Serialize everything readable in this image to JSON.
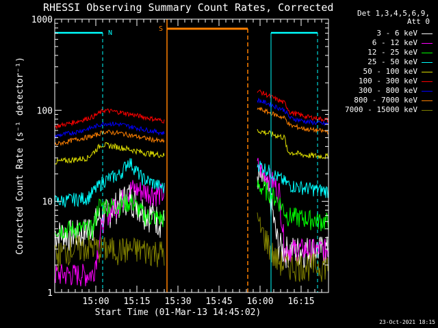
{
  "chart_data": {
    "type": "line",
    "title": "RHESSI Observing Summary Count Rates, Corrected",
    "xlabel": "Start Time (01-Mar-13 14:45:02)",
    "ylabel": "Corrected Count Rate (s⁻¹ detector⁻¹)",
    "ylog": true,
    "ylim": [
      1,
      1000
    ],
    "yticks": [
      {
        "v": 1,
        "label": "1"
      },
      {
        "v": 10,
        "label": "10"
      },
      {
        "v": 100,
        "label": "100"
      },
      {
        "v": 1000,
        "label": "1000"
      }
    ],
    "xlim_minutes": [
      0,
      100
    ],
    "xticks": [
      {
        "t": 15,
        "label": "15:00"
      },
      {
        "t": 30,
        "label": "15:15"
      },
      {
        "t": 45,
        "label": "15:30"
      },
      {
        "t": 60,
        "label": "15:45"
      },
      {
        "t": 75,
        "label": "16:00"
      },
      {
        "t": 90,
        "label": "16:15"
      }
    ],
    "detectors": "Det 1,3,4,5,6,9,",
    "attenuator": "Att 0",
    "annotations": [
      {
        "label": "N",
        "color": "#00ffff"
      },
      {
        "label": "S",
        "color": "#ff8000"
      }
    ],
    "series": [
      {
        "name": "3 - 6 keV",
        "color": "#ffffff",
        "seg1": [
          {
            "t": 0,
            "v": 4.5
          },
          {
            "t": 10,
            "v": 4.5
          },
          {
            "t": 17,
            "v": 7
          },
          {
            "t": 22,
            "v": 9
          },
          {
            "t": 27,
            "v": 12
          },
          {
            "t": 33,
            "v": 8
          },
          {
            "t": 40,
            "v": 6
          }
        ],
        "seg2": [
          {
            "t": 74,
            "v": 20
          },
          {
            "t": 77,
            "v": 15
          },
          {
            "t": 79,
            "v": 10
          },
          {
            "t": 81,
            "v": 4
          },
          {
            "t": 83,
            "v": 3
          },
          {
            "t": 88,
            "v": 3
          },
          {
            "t": 100,
            "v": 3
          }
        ]
      },
      {
        "name": "6 - 12 keV",
        "color": "#ff00ff",
        "seg1": [
          {
            "t": 0,
            "v": 1.6
          },
          {
            "t": 14,
            "v": 1.6
          },
          {
            "t": 18,
            "v": 7
          },
          {
            "t": 24,
            "v": 10
          },
          {
            "t": 28,
            "v": 14
          },
          {
            "t": 33,
            "v": 13
          },
          {
            "t": 40,
            "v": 12
          }
        ],
        "seg2": [
          {
            "t": 74,
            "v": 25
          },
          {
            "t": 77,
            "v": 20
          },
          {
            "t": 80,
            "v": 16
          },
          {
            "t": 82,
            "v": 13
          },
          {
            "t": 84,
            "v": 3
          },
          {
            "t": 100,
            "v": 3
          }
        ]
      },
      {
        "name": "12 - 25 keV",
        "color": "#00ff00",
        "seg1": [
          {
            "t": 0,
            "v": 5
          },
          {
            "t": 14,
            "v": 5
          },
          {
            "t": 16,
            "v": 9
          },
          {
            "t": 22,
            "v": 9
          },
          {
            "t": 28,
            "v": 10
          },
          {
            "t": 33,
            "v": 7
          },
          {
            "t": 40,
            "v": 6.5
          }
        ],
        "seg2": [
          {
            "t": 74,
            "v": 15
          },
          {
            "t": 78,
            "v": 13
          },
          {
            "t": 82,
            "v": 10
          },
          {
            "t": 85,
            "v": 7
          },
          {
            "t": 100,
            "v": 6
          }
        ]
      },
      {
        "name": "25 - 50 keV",
        "color": "#00ffff",
        "seg1": [
          {
            "t": 0,
            "v": 10
          },
          {
            "t": 12,
            "v": 11
          },
          {
            "t": 18,
            "v": 17
          },
          {
            "t": 24,
            "v": 20
          },
          {
            "t": 27,
            "v": 28
          },
          {
            "t": 32,
            "v": 18
          },
          {
            "t": 40,
            "v": 14
          }
        ],
        "seg2": [
          {
            "t": 74,
            "v": 26
          },
          {
            "t": 78,
            "v": 22
          },
          {
            "t": 82,
            "v": 18
          },
          {
            "t": 86,
            "v": 15
          },
          {
            "t": 92,
            "v": 14
          },
          {
            "t": 100,
            "v": 13
          }
        ]
      },
      {
        "name": "50 - 100 keV",
        "color": "#e0e000",
        "seg1": [
          {
            "t": 0,
            "v": 27
          },
          {
            "t": 12,
            "v": 30
          },
          {
            "t": 17,
            "v": 42
          },
          {
            "t": 22,
            "v": 40
          },
          {
            "t": 26,
            "v": 38
          },
          {
            "t": 33,
            "v": 34
          },
          {
            "t": 40,
            "v": 32
          }
        ],
        "seg2": [
          {
            "t": 74,
            "v": 60
          },
          {
            "t": 78,
            "v": 56
          },
          {
            "t": 84,
            "v": 50
          },
          {
            "t": 85,
            "v": 35
          },
          {
            "t": 92,
            "v": 32
          },
          {
            "t": 100,
            "v": 31
          }
        ]
      },
      {
        "name": "100 - 300 keV",
        "color": "#ff0000",
        "seg1": [
          {
            "t": 0,
            "v": 66
          },
          {
            "t": 8,
            "v": 75
          },
          {
            "t": 14,
            "v": 85
          },
          {
            "t": 18,
            "v": 100
          },
          {
            "t": 24,
            "v": 95
          },
          {
            "t": 32,
            "v": 85
          },
          {
            "t": 40,
            "v": 76
          }
        ],
        "seg2": [
          {
            "t": 74,
            "v": 165
          },
          {
            "t": 78,
            "v": 145
          },
          {
            "t": 84,
            "v": 120
          },
          {
            "t": 86,
            "v": 95
          },
          {
            "t": 92,
            "v": 85
          },
          {
            "t": 100,
            "v": 78
          }
        ]
      },
      {
        "name": "300 - 800 keV",
        "color": "#0000ff",
        "seg1": [
          {
            "t": 0,
            "v": 52
          },
          {
            "t": 8,
            "v": 58
          },
          {
            "t": 14,
            "v": 65
          },
          {
            "t": 18,
            "v": 72
          },
          {
            "t": 24,
            "v": 70
          },
          {
            "t": 32,
            "v": 62
          },
          {
            "t": 40,
            "v": 56
          }
        ],
        "seg2": [
          {
            "t": 74,
            "v": 130
          },
          {
            "t": 78,
            "v": 118
          },
          {
            "t": 84,
            "v": 100
          },
          {
            "t": 86,
            "v": 82
          },
          {
            "t": 92,
            "v": 75
          },
          {
            "t": 100,
            "v": 70
          }
        ]
      },
      {
        "name": "800 - 7000 keV",
        "color": "#ff8000",
        "seg1": [
          {
            "t": 0,
            "v": 42
          },
          {
            "t": 8,
            "v": 48
          },
          {
            "t": 14,
            "v": 52
          },
          {
            "t": 18,
            "v": 58
          },
          {
            "t": 24,
            "v": 56
          },
          {
            "t": 32,
            "v": 50
          },
          {
            "t": 40,
            "v": 45
          }
        ],
        "seg2": [
          {
            "t": 74,
            "v": 105
          },
          {
            "t": 78,
            "v": 95
          },
          {
            "t": 84,
            "v": 82
          },
          {
            "t": 86,
            "v": 68
          },
          {
            "t": 92,
            "v": 62
          },
          {
            "t": 100,
            "v": 58
          }
        ]
      },
      {
        "name": "7000 - 15000 keV",
        "color": "#808000",
        "seg1": [
          {
            "t": 0,
            "v": 2.5
          },
          {
            "t": 5,
            "v": 3
          },
          {
            "t": 12,
            "v": 3.2
          },
          {
            "t": 20,
            "v": 3
          },
          {
            "t": 30,
            "v": 3
          },
          {
            "t": 40,
            "v": 2.8
          }
        ],
        "seg2": [
          {
            "t": 74,
            "v": 6
          },
          {
            "t": 76,
            "v": 4.5
          },
          {
            "t": 78,
            "v": 3.5
          },
          {
            "t": 80,
            "v": 2.5
          },
          {
            "t": 84,
            "v": 2
          },
          {
            "t": 90,
            "v": 2
          },
          {
            "t": 100,
            "v": 2
          }
        ]
      }
    ]
  },
  "timestamp": "23-Oct-2021 18:15"
}
